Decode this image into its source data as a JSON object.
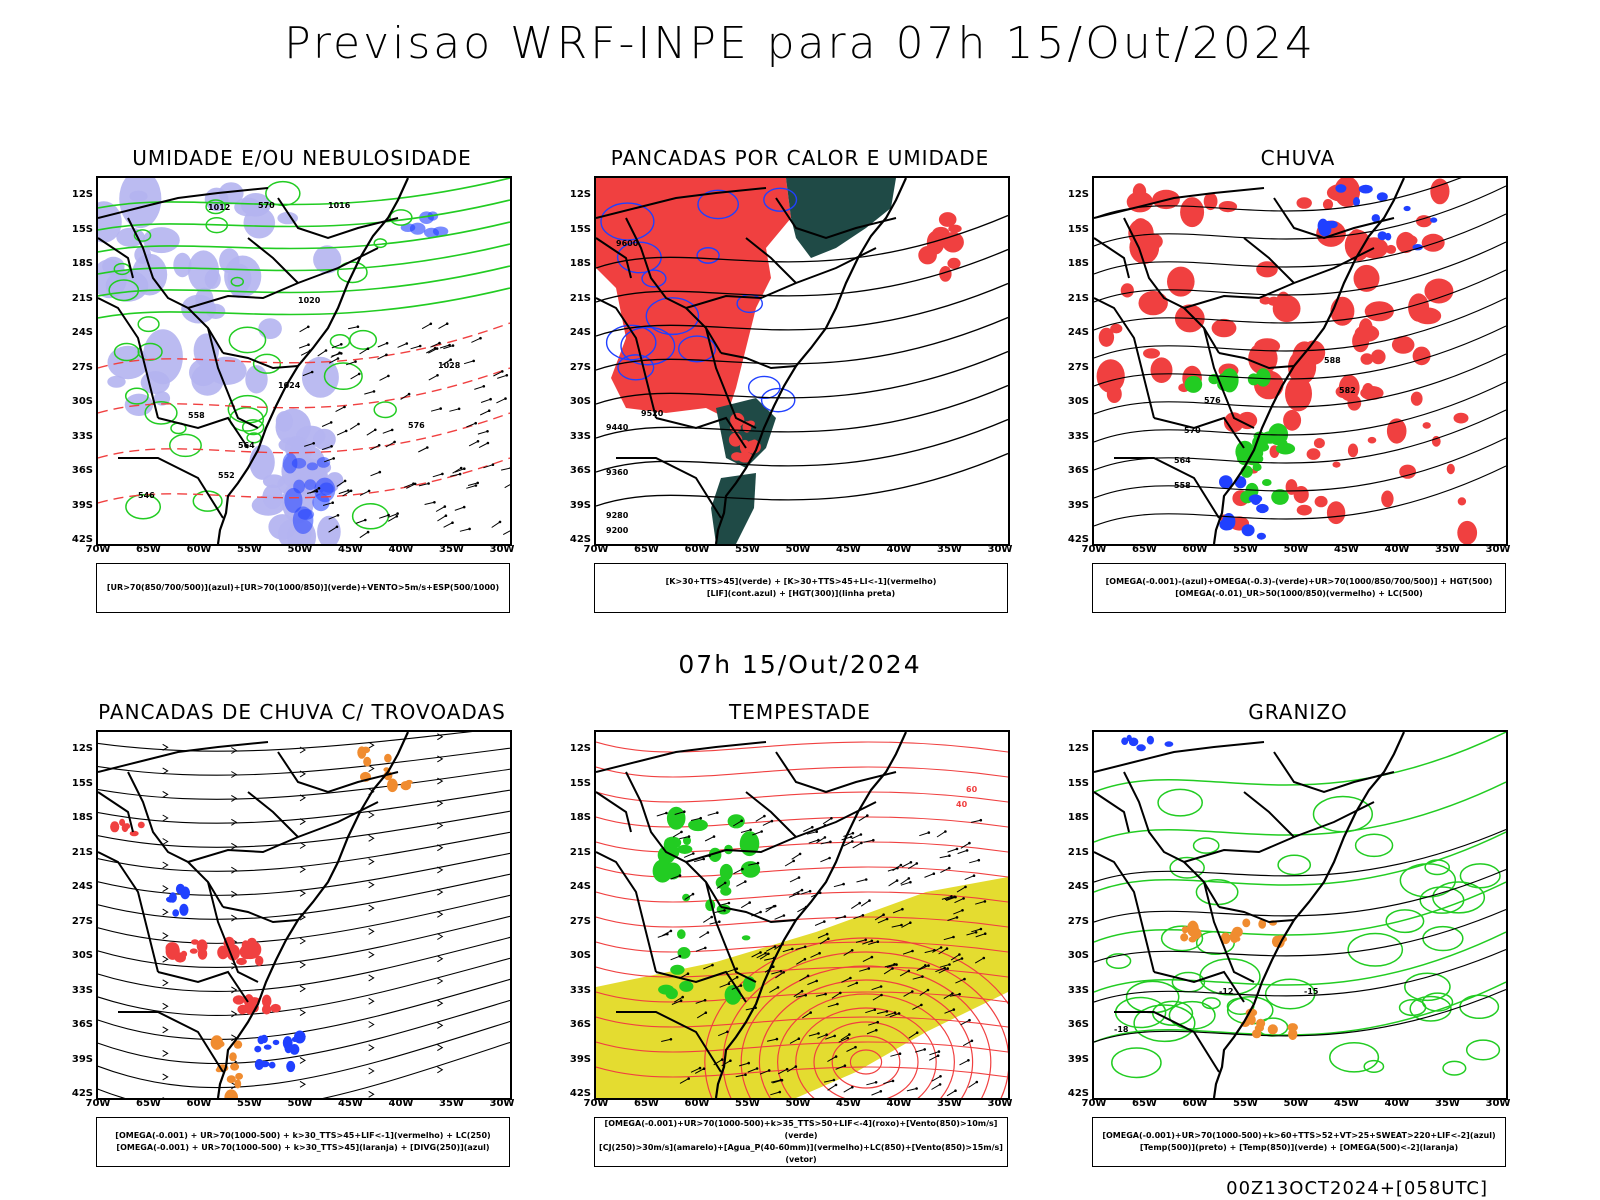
{
  "title": "Previsao WRF-INPE  para 07h 15/Out/2024",
  "mid_title": "07h 15/Out/2024",
  "footer": "00Z13OCT2024+[058UTC]",
  "lat_labels": [
    "12S",
    "15S",
    "18S",
    "21S",
    "24S",
    "27S",
    "30S",
    "33S",
    "36S",
    "39S",
    "42S"
  ],
  "lon_labels": [
    "70W",
    "65W",
    "60W",
    "55W",
    "50W",
    "45W",
    "40W",
    "35W",
    "30W"
  ],
  "colors": {
    "red": "#f04040",
    "green": "#22cc22",
    "blue": "#2040ff",
    "lavender": "#b4b4f0",
    "dark_teal": "#1f4a46",
    "yellow": "#e4dc30",
    "orange": "#f08c30",
    "black": "#000000"
  },
  "panels": [
    {
      "id": "umidade",
      "title": "UMIDADE E/OU NEBULOSIDADE",
      "legend": [
        "[UR>70(850/700/500)](azul)+[UR>70(1000/850)](verde)+VENTO>5m/s+ESP(500/1000)"
      ],
      "contour_labels": [
        "1012",
        "1016",
        "1020",
        "1024",
        "1028",
        "576",
        "570",
        "564",
        "558",
        "552",
        "546"
      ]
    },
    {
      "id": "pancadas-calor",
      "title": "PANCADAS POR CALOR E UMIDADE",
      "legend": [
        "[K>30+TTS>45](verde) + [K>30+TTS>45+LI<-1](vermelho)",
        "[LIF](cont.azul) + [HGT(300)](linha preta)"
      ],
      "contour_labels": [
        "9600",
        "9520",
        "9440",
        "9360",
        "9280",
        "9200"
      ]
    },
    {
      "id": "chuva",
      "title": "CHUVA",
      "legend": [
        "[OMEGA(-0.001)-(azul)+OMEGA(-0.3)-(verde)+UR>70(1000/850/700/500)] + HGT(500)",
        "[OMEGA(-0.01)_UR>50(1000/850)(vermelho) + LC(500)"
      ],
      "contour_labels": [
        "588",
        "582",
        "576",
        "570",
        "564",
        "558"
      ]
    },
    {
      "id": "pancadas-trovoadas",
      "title": "PANCADAS DE CHUVA C/ TROVOADAS",
      "legend": [
        "[OMEGA(-0.001) + UR>70(1000-500) + k>30_TTS>45+LIF<-1](vermelho) + LC(250)",
        "[OMEGA(-0.001) + UR>70(1000-500) + k>30_TTS>45](laranja) + [DIVG(250)](azul)"
      ],
      "contour_labels": []
    },
    {
      "id": "tempestade",
      "title": "TEMPESTADE",
      "legend": [
        "[OMEGA(-0.001)+UR>70(1000-500)+k>35_TTS>50+LIF<-4](roxo)+[Vento(850)>10m/s](verde)",
        "[CJ(250)>30m/s](amarelo)+[Agua_P(40-60mm)](vermelho)+LC(850)+[Vento(850)>15m/s](vetor)"
      ],
      "contour_labels": [
        "60",
        "40"
      ]
    },
    {
      "id": "granizo",
      "title": "GRANIZO",
      "legend": [
        "[OMEGA(-0.001)+UR>70(1000-500)+k>60+TTS>52+VT>25+SWEAT>220+LIF<-2](azul)",
        "[Temp(500)](preto) + [Temp(850)](verde) + [OMEGA(500)<-2](laranja)"
      ],
      "contour_labels": [
        "-12",
        "-15",
        "-18"
      ]
    }
  ]
}
